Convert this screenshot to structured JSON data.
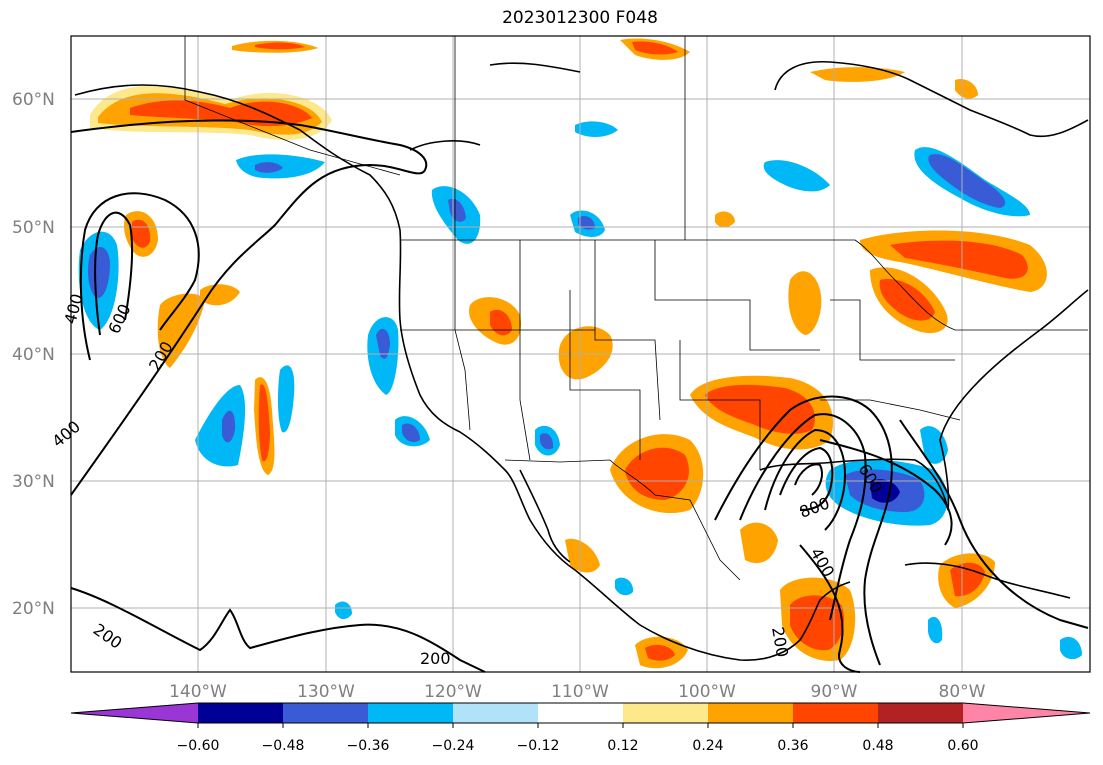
{
  "title": "2023012300 F048",
  "lat_labels": [
    "60°N",
    "50°N",
    "40°N",
    "30°N",
    "20°N"
  ],
  "lon_labels": [
    "140°W",
    "130°W",
    "120°W",
    "110°W",
    "100°W",
    "90°W",
    "80°W"
  ],
  "colorbar": {
    "labels": [
      "−0.60",
      "−0.48",
      "−0.36",
      "−0.24",
      "−0.12",
      "0.12",
      "0.24",
      "0.36",
      "0.48",
      "0.60"
    ],
    "colors": [
      "#9a35d6",
      "#000096",
      "#3a5bd6",
      "#00b8f5",
      "#b0e2fa",
      "#ffffff",
      "#fde98c",
      "#ffa300",
      "#ff4500",
      "#b22222",
      "#ff85a6"
    ]
  },
  "contour_labels": [
    "200",
    "400",
    "600",
    "200",
    "400",
    "800",
    "600",
    "400",
    "200",
    "200"
  ],
  "legend": {
    "positive_colors": [
      "#fde98c",
      "#ffa300",
      "#ff4500"
    ],
    "negative_colors": [
      "#b0e2fa",
      "#00b8f5",
      "#3a5bd6",
      "#000096"
    ]
  }
}
